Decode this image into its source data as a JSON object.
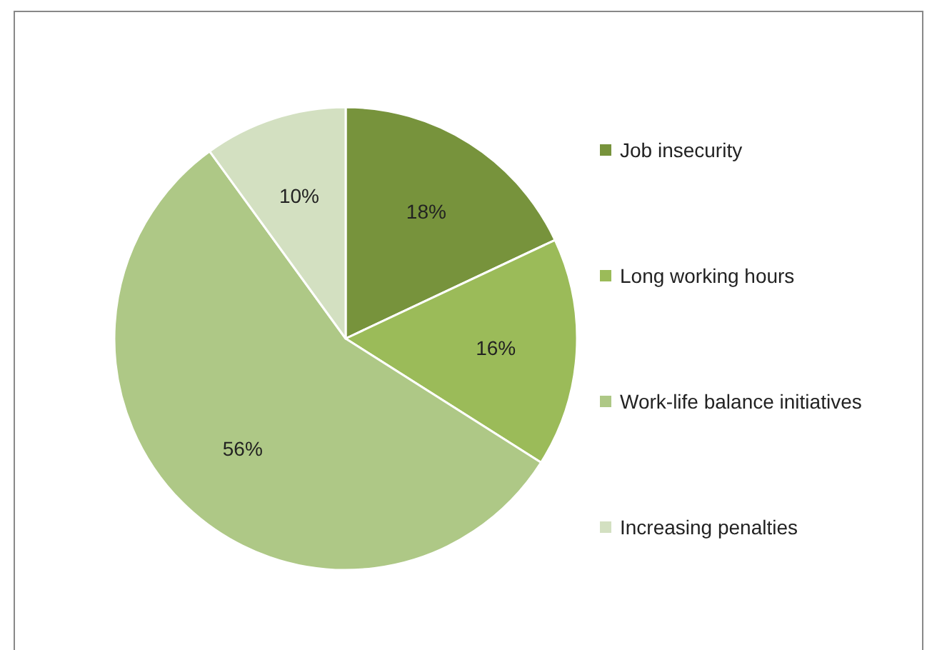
{
  "chart_data": {
    "type": "pie",
    "categories": [
      "Job insecurity",
      "Long working hours",
      "Work-life balance initiatives",
      "Increasing penalties"
    ],
    "values": [
      18,
      16,
      56,
      10
    ],
    "colors": [
      "#77933c",
      "#9bbb59",
      "#aec886",
      "#d3e0c1"
    ],
    "value_labels": [
      "18%",
      "16%",
      "56%",
      "10%"
    ],
    "legend": "right"
  }
}
